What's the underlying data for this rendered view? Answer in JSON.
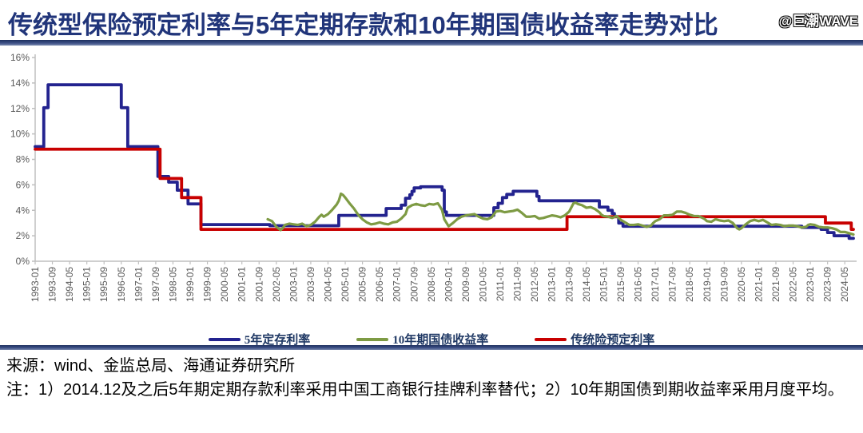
{
  "header": {
    "title": "传统型保险预定利率与5年定期存款和10年期国债收益率走势对比",
    "watermark": "@巨潮WAVE"
  },
  "footer": {
    "source": "来源：wind、金监总局、海通证券研究所",
    "note": "注：1）2014.12及之后5年期定期存款利率采用中国工商银行挂牌利率替代；2）10年期国债到期收益率采用月度平均。"
  },
  "colors": {
    "deposit": "#23238F",
    "bond": "#7E9B44",
    "insurance": "#C80000",
    "axis": "#BFBFBF",
    "tick_label": "#595959",
    "title_navy": "#21357A"
  },
  "chart_data": {
    "type": "line",
    "title": "传统型保险预定利率与5年定期存款和10年期国债收益率走势对比",
    "ylabel": "",
    "xlabel": "",
    "ylim": [
      0,
      16
    ],
    "y_ticks": [
      "0%",
      "2%",
      "4%",
      "6%",
      "8%",
      "10%",
      "12%",
      "14%",
      "16%"
    ],
    "grid": false,
    "legend_position": "bottom",
    "months_start": "1993-01",
    "x_range_months": [
      0,
      380
    ],
    "x_tick_month_step": 8,
    "x_tick_labels": [
      "1993-01",
      "1993-09",
      "1994-05",
      "1995-01",
      "1995-09",
      "1996-05",
      "1997-01",
      "1997-09",
      "1998-05",
      "1999-01",
      "1999-09",
      "2000-05",
      "2001-01",
      "2001-09",
      "2002-05",
      "2003-01",
      "2003-09",
      "2004-05",
      "2005-01",
      "2005-09",
      "2006-05",
      "2007-01",
      "2007-09",
      "2008-05",
      "2009-01",
      "2009-09",
      "2010-05",
      "2011-01",
      "2011-09",
      "2012-05",
      "2013-01",
      "2013-09",
      "2014-05",
      "2015-01",
      "2015-09",
      "2016-05",
      "2017-01",
      "2017-09",
      "2018-05",
      "2019-01",
      "2019-09",
      "2020-05",
      "2021-01",
      "2021-09",
      "2022-05",
      "2023-01",
      "2023-09",
      "2024-05"
    ],
    "series": [
      {
        "name": "5年定存利率",
        "key": "deposit-rate-line",
        "color": "#23238F",
        "interp": "step",
        "points": [
          [
            0,
            9.0
          ],
          [
            4,
            12.06
          ],
          [
            6,
            13.86
          ],
          [
            40,
            12.06
          ],
          [
            43,
            9.0
          ],
          [
            57,
            6.66
          ],
          [
            62,
            6.21
          ],
          [
            66,
            5.58
          ],
          [
            71,
            4.5
          ],
          [
            77,
            2.88
          ],
          [
            109,
            2.79
          ],
          [
            141,
            3.6
          ],
          [
            163,
            4.14
          ],
          [
            170,
            4.41
          ],
          [
            172,
            4.95
          ],
          [
            174,
            5.22
          ],
          [
            175,
            5.49
          ],
          [
            176,
            5.76
          ],
          [
            179,
            5.85
          ],
          [
            189,
            5.58
          ],
          [
            190,
            3.87
          ],
          [
            191,
            3.6
          ],
          [
            213,
            4.2
          ],
          [
            215,
            4.55
          ],
          [
            217,
            5.0
          ],
          [
            219,
            5.25
          ],
          [
            222,
            5.5
          ],
          [
            233,
            5.1
          ],
          [
            234,
            4.75
          ],
          [
            262,
            4.25
          ],
          [
            266,
            4.0
          ],
          [
            268,
            3.75
          ],
          [
            269,
            3.5
          ],
          [
            271,
            3.0
          ],
          [
            273,
            2.75
          ],
          [
            356,
            2.65
          ],
          [
            365,
            2.5
          ],
          [
            368,
            2.25
          ],
          [
            371,
            2.0
          ],
          [
            378,
            1.8
          ],
          [
            380,
            1.8
          ]
        ]
      },
      {
        "name": "10年期国债收益率",
        "key": "bond-yield-line",
        "color": "#7E9B44",
        "interp": "linear",
        "points": [
          [
            108,
            3.3
          ],
          [
            110,
            3.15
          ],
          [
            112,
            2.7
          ],
          [
            114,
            2.45
          ],
          [
            115,
            2.6
          ],
          [
            116,
            2.85
          ],
          [
            118,
            2.95
          ],
          [
            120,
            2.9
          ],
          [
            122,
            2.85
          ],
          [
            124,
            2.95
          ],
          [
            126,
            2.75
          ],
          [
            128,
            2.85
          ],
          [
            130,
            3.1
          ],
          [
            132,
            3.5
          ],
          [
            133,
            3.65
          ],
          [
            134,
            3.5
          ],
          [
            136,
            3.7
          ],
          [
            138,
            4.05
          ],
          [
            140,
            4.45
          ],
          [
            141,
            4.75
          ],
          [
            142,
            5.3
          ],
          [
            143,
            5.2
          ],
          [
            144,
            5.0
          ],
          [
            146,
            4.55
          ],
          [
            148,
            4.15
          ],
          [
            150,
            3.65
          ],
          [
            152,
            3.3
          ],
          [
            154,
            3.05
          ],
          [
            156,
            2.9
          ],
          [
            158,
            2.95
          ],
          [
            160,
            3.05
          ],
          [
            162,
            2.95
          ],
          [
            164,
            2.9
          ],
          [
            166,
            3.05
          ],
          [
            168,
            3.1
          ],
          [
            170,
            3.35
          ],
          [
            172,
            3.7
          ],
          [
            173,
            4.2
          ],
          [
            175,
            4.4
          ],
          [
            177,
            4.5
          ],
          [
            179,
            4.4
          ],
          [
            181,
            4.35
          ],
          [
            183,
            4.5
          ],
          [
            185,
            4.45
          ],
          [
            187,
            4.55
          ],
          [
            188,
            4.3
          ],
          [
            189,
            4.0
          ],
          [
            190,
            3.3
          ],
          [
            192,
            2.75
          ],
          [
            194,
            3.0
          ],
          [
            196,
            3.3
          ],
          [
            198,
            3.5
          ],
          [
            200,
            3.6
          ],
          [
            202,
            3.65
          ],
          [
            204,
            3.7
          ],
          [
            206,
            3.5
          ],
          [
            208,
            3.35
          ],
          [
            210,
            3.3
          ],
          [
            212,
            3.45
          ],
          [
            214,
            3.9
          ],
          [
            216,
            3.95
          ],
          [
            218,
            3.85
          ],
          [
            220,
            3.9
          ],
          [
            222,
            3.95
          ],
          [
            224,
            4.05
          ],
          [
            226,
            3.8
          ],
          [
            228,
            3.5
          ],
          [
            230,
            3.5
          ],
          [
            232,
            3.55
          ],
          [
            234,
            3.35
          ],
          [
            236,
            3.4
          ],
          [
            238,
            3.5
          ],
          [
            240,
            3.6
          ],
          [
            242,
            3.55
          ],
          [
            244,
            3.45
          ],
          [
            246,
            3.6
          ],
          [
            248,
            3.9
          ],
          [
            250,
            4.55
          ],
          [
            251,
            4.6
          ],
          [
            252,
            4.5
          ],
          [
            254,
            4.4
          ],
          [
            256,
            4.2
          ],
          [
            258,
            4.25
          ],
          [
            260,
            4.1
          ],
          [
            262,
            3.85
          ],
          [
            263,
            3.65
          ],
          [
            264,
            3.55
          ],
          [
            266,
            3.5
          ],
          [
            268,
            3.4
          ],
          [
            270,
            3.55
          ],
          [
            272,
            3.25
          ],
          [
            274,
            3.05
          ],
          [
            276,
            2.85
          ],
          [
            278,
            2.85
          ],
          [
            280,
            2.9
          ],
          [
            282,
            2.8
          ],
          [
            284,
            2.7
          ],
          [
            286,
            2.8
          ],
          [
            287,
            3.0
          ],
          [
            288,
            3.15
          ],
          [
            290,
            3.3
          ],
          [
            292,
            3.6
          ],
          [
            294,
            3.6
          ],
          [
            296,
            3.65
          ],
          [
            298,
            3.9
          ],
          [
            300,
            3.9
          ],
          [
            302,
            3.8
          ],
          [
            304,
            3.65
          ],
          [
            306,
            3.55
          ],
          [
            308,
            3.55
          ],
          [
            310,
            3.4
          ],
          [
            311,
            3.3
          ],
          [
            312,
            3.15
          ],
          [
            314,
            3.1
          ],
          [
            316,
            3.3
          ],
          [
            318,
            3.2
          ],
          [
            320,
            3.15
          ],
          [
            322,
            3.2
          ],
          [
            324,
            3.0
          ],
          [
            326,
            2.6
          ],
          [
            327,
            2.5
          ],
          [
            328,
            2.6
          ],
          [
            330,
            2.9
          ],
          [
            332,
            3.15
          ],
          [
            334,
            3.25
          ],
          [
            336,
            3.15
          ],
          [
            338,
            3.25
          ],
          [
            340,
            3.05
          ],
          [
            342,
            2.85
          ],
          [
            344,
            2.9
          ],
          [
            346,
            2.85
          ],
          [
            348,
            2.75
          ],
          [
            350,
            2.8
          ],
          [
            352,
            2.8
          ],
          [
            354,
            2.75
          ],
          [
            356,
            2.65
          ],
          [
            358,
            2.7
          ],
          [
            359,
            2.85
          ],
          [
            360,
            2.9
          ],
          [
            362,
            2.85
          ],
          [
            364,
            2.7
          ],
          [
            366,
            2.65
          ],
          [
            368,
            2.65
          ],
          [
            370,
            2.6
          ],
          [
            372,
            2.5
          ],
          [
            374,
            2.3
          ],
          [
            376,
            2.3
          ],
          [
            378,
            2.2
          ],
          [
            380,
            2.1
          ]
        ]
      },
      {
        "name": "传统险预定利率",
        "key": "insurance-rate-line",
        "color": "#C80000",
        "interp": "step",
        "points": [
          [
            0,
            8.8
          ],
          [
            58,
            6.5
          ],
          [
            68,
            5.0
          ],
          [
            77,
            2.5
          ],
          [
            247,
            3.5
          ],
          [
            367,
            3.0
          ],
          [
            379,
            2.5
          ],
          [
            380,
            2.5
          ]
        ]
      }
    ]
  }
}
